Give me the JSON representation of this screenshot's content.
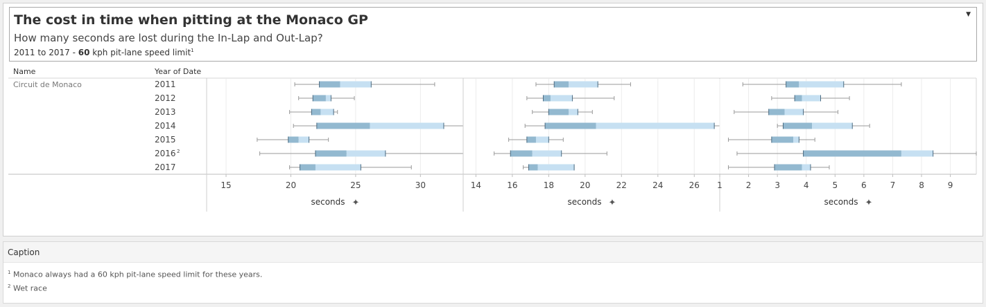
{
  "header": {
    "title": "The cost in time when pitting at the Monaco GP",
    "subtitle": "How many seconds are lost during the In-Lap and Out-Lap?",
    "subnote_pre": "2011 to 2017 - ",
    "subnote_bold": "60",
    "subnote_post": " kph pit-lane speed limit",
    "subnote_marker": "1",
    "dropdown_icon": "chevron-down-icon"
  },
  "table": {
    "col1_header": "Name",
    "col2_header": "Year of Date",
    "circuit": "Circuit de Monaco"
  },
  "caption": {
    "header": "Caption",
    "note1_marker": "1",
    "note1": "Monaco always had a 60 kph pit-lane speed limit for these years.",
    "note2_marker": "2",
    "note2": "Wet race"
  },
  "colors": {
    "box_lower": "#93b9d0",
    "box_upper": "#c6e0f2",
    "whisker": "#999999",
    "grid": "#ececec"
  },
  "chart_data": {
    "type": "boxplot",
    "years": [
      "2011",
      "2012",
      "2013",
      "2014",
      "2015",
      "2016",
      "2017"
    ],
    "year_markers": [
      "",
      "",
      "",
      "",
      "",
      "2",
      ""
    ],
    "pin_icon": "pin-icon",
    "panels": [
      {
        "xlabel": "seconds",
        "xlim": [
          13.5,
          33.3
        ],
        "ticks": [
          15,
          20,
          25,
          30
        ],
        "boxes": [
          {
            "min": 20.3,
            "q1": 22.2,
            "median": 23.8,
            "q3": 26.2,
            "max": 31.1
          },
          {
            "min": 20.6,
            "q1": 21.7,
            "median": 22.7,
            "q3": 23.1,
            "max": 24.9
          },
          {
            "min": 19.9,
            "q1": 21.6,
            "median": 22.3,
            "q3": 23.3,
            "max": 23.6
          },
          {
            "min": 20.2,
            "q1": 22.0,
            "median": 26.1,
            "q3": 31.8,
            "max": 33.3
          },
          {
            "min": 17.4,
            "q1": 19.8,
            "median": 20.6,
            "q3": 21.4,
            "max": 22.9
          },
          {
            "min": 17.6,
            "q1": 21.9,
            "median": 24.3,
            "q3": 27.3,
            "max": 33.3
          },
          {
            "min": 19.9,
            "q1": 20.7,
            "median": 21.9,
            "q3": 25.4,
            "max": 29.3
          }
        ]
      },
      {
        "xlabel": "seconds",
        "xlim": [
          13.3,
          27.4
        ],
        "ticks": [
          14,
          16,
          18,
          20,
          22,
          24,
          26
        ],
        "boxes": [
          {
            "min": 17.3,
            "q1": 18.3,
            "median": 19.1,
            "q3": 20.7,
            "max": 22.5
          },
          {
            "min": 16.8,
            "q1": 17.7,
            "median": 18.1,
            "q3": 19.3,
            "max": 21.6
          },
          {
            "min": 17.1,
            "q1": 18.0,
            "median": 19.1,
            "q3": 19.6,
            "max": 20.4
          },
          {
            "min": 16.7,
            "q1": 17.8,
            "median": 20.6,
            "q3": 27.1,
            "max": 27.4
          },
          {
            "min": 15.8,
            "q1": 16.8,
            "median": 17.3,
            "q3": 18.0,
            "max": 18.8
          },
          {
            "min": 15.0,
            "q1": 15.9,
            "median": 17.1,
            "q3": 18.7,
            "max": 21.2
          },
          {
            "min": 16.6,
            "q1": 16.9,
            "median": 17.4,
            "q3": 19.4,
            "max": 19.4
          }
        ]
      },
      {
        "xlabel": "seconds",
        "xlim": [
          1.0,
          9.9
        ],
        "ticks": [
          1,
          2,
          3,
          4,
          5,
          6,
          7,
          8,
          9
        ],
        "boxes": [
          {
            "min": 1.8,
            "q1": 3.3,
            "median": 3.75,
            "q3": 5.3,
            "max": 7.3
          },
          {
            "min": 2.8,
            "q1": 3.6,
            "median": 3.85,
            "q3": 4.5,
            "max": 5.5
          },
          {
            "min": 1.5,
            "q1": 2.7,
            "median": 3.25,
            "q3": 3.9,
            "max": 5.1
          },
          {
            "min": 3.0,
            "q1": 3.2,
            "median": 4.2,
            "q3": 5.6,
            "max": 6.2
          },
          {
            "min": 1.3,
            "q1": 2.8,
            "median": 3.55,
            "q3": 3.75,
            "max": 4.3
          },
          {
            "min": 1.6,
            "q1": 3.9,
            "median": 7.3,
            "q3": 8.4,
            "max": 9.9
          },
          {
            "min": 1.3,
            "q1": 2.9,
            "median": 3.85,
            "q3": 4.15,
            "max": 4.8
          }
        ]
      }
    ]
  }
}
